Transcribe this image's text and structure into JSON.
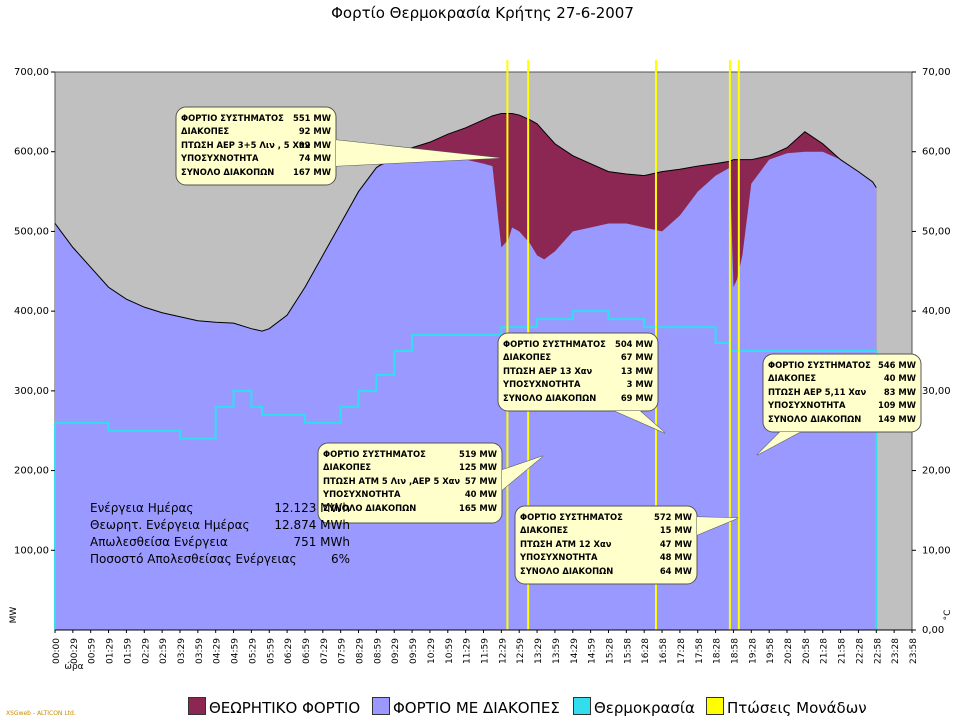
{
  "chart_data": {
    "type": "area",
    "title": "Φορτίο Θερμοκρασία Κρήτης 27-6-2007",
    "ylabel": "MW",
    "y2label": "°C",
    "xlabel": "ώρα",
    "ylim": [
      0,
      700
    ],
    "y2lim": [
      0,
      70
    ],
    "yticks": [
      "100,00",
      "200,00",
      "300,00",
      "400,00",
      "500,00",
      "600,00",
      "700,00"
    ],
    "y2ticks": [
      "0,00",
      "10,00",
      "20,00",
      "30,00",
      "40,00",
      "50,00",
      "60,00",
      "70,00"
    ],
    "xticks": [
      "00:00",
      "00:29",
      "00:59",
      "01:29",
      "01:59",
      "02:29",
      "02:59",
      "03:29",
      "03:59",
      "04:29",
      "04:59",
      "05:29",
      "05:59",
      "06:29",
      "06:59",
      "07:29",
      "07:59",
      "08:29",
      "08:59",
      "09:29",
      "09:59",
      "10:29",
      "10:59",
      "11:29",
      "11:59",
      "12:29",
      "12:59",
      "13:29",
      "13:59",
      "14:29",
      "14:59",
      "15:28",
      "15:58",
      "16:28",
      "16:58",
      "17:28",
      "17:58",
      "18:28",
      "18:58",
      "19:28",
      "19:58",
      "20:28",
      "20:58",
      "21:28",
      "21:58",
      "22:28",
      "22:58",
      "23:28",
      "23:58"
    ],
    "x_hours": [
      0,
      0.5,
      1,
      1.5,
      2,
      2.5,
      3,
      3.5,
      4,
      4.5,
      5,
      5.5,
      5.8,
      6,
      6.5,
      7,
      7.5,
      8,
      8.5,
      9,
      9.5,
      10,
      10.5,
      11,
      11.5,
      12,
      12.25,
      12.5,
      12.7,
      12.8,
      13,
      13.3,
      13.5,
      13.7,
      14,
      14.5,
      15,
      15.5,
      16,
      16.5,
      17,
      17.5,
      18,
      18.5,
      18.9,
      19.0,
      19.1,
      19.25,
      19.5,
      20,
      20.5,
      21,
      21.5,
      22,
      22.5,
      22.9,
      23.0
    ],
    "series": [
      {
        "name": "ΘΕΩΡΗΤΙΚΟ ΦΟΡΤΙΟ",
        "color": "#8b2752",
        "values": [
          510,
          480,
          455,
          430,
          415,
          405,
          398,
          393,
          388,
          386,
          385,
          378,
          375,
          378,
          395,
          430,
          470,
          510,
          550,
          580,
          595,
          605,
          612,
          622,
          630,
          640,
          645,
          648,
          648,
          648,
          646,
          640,
          635,
          625,
          610,
          595,
          585,
          575,
          572,
          570,
          575,
          578,
          582,
          585,
          588,
          590,
          590,
          590,
          590,
          595,
          605,
          625,
          610,
          590,
          575,
          562,
          555
        ]
      },
      {
        "name": "ΦΟΡΤΙΟ ΜΕ ΔΙΑΚΟΠΕΣ",
        "color": "#9999ff",
        "values": [
          510,
          480,
          455,
          430,
          415,
          405,
          398,
          393,
          388,
          386,
          385,
          378,
          375,
          378,
          395,
          430,
          470,
          510,
          550,
          580,
          590,
          592,
          592,
          592,
          590,
          585,
          582,
          480,
          490,
          505,
          500,
          485,
          470,
          465,
          475,
          500,
          505,
          510,
          510,
          505,
          500,
          520,
          550,
          570,
          580,
          430,
          440,
          470,
          560,
          590,
          598,
          600,
          600,
          590,
          575,
          562,
          555
        ]
      },
      {
        "name": "Θερμοκρασία",
        "color": "#33ddee",
        "axis": "right",
        "values": [
          26,
          26,
          26,
          25,
          25,
          25,
          25,
          24,
          24,
          28,
          30,
          28,
          27,
          27,
          27,
          26,
          26,
          28,
          30,
          32,
          35,
          37,
          37,
          37,
          37,
          37,
          37,
          38,
          38,
          38,
          38,
          38,
          39,
          39,
          39,
          40,
          40,
          39,
          39,
          38,
          38,
          38,
          38,
          36,
          35,
          35,
          35,
          35,
          35,
          35,
          35,
          35,
          35,
          35,
          35,
          35,
          35
        ]
      },
      {
        "name": "Πτώσεις Μονάδων",
        "color": "#ffff00",
        "type": "vline",
        "x_hours": [
          12.67,
          13.25,
          16.83,
          18.9,
          19.15
        ]
      }
    ],
    "callouts": [
      {
        "rows": [
          [
            "ΦΟΡΤΙΟ ΣΥΣΤΗΜΑΤΟΣ",
            "551 MW"
          ],
          [
            "ΔΙΑΚΟΠΕΣ",
            "92 MW"
          ],
          [
            "ΠΤΩΣΗ ΑΕΡ 3+5 Λιν , 5 Χαν",
            "92 MW"
          ],
          [
            "ΥΠΟΣΥΧΝΟΤΗΤΑ",
            "74 MW"
          ],
          [
            "ΣΥΝΟΛΟ ΔΙΑΚΟΠΩΝ",
            "167 MW"
          ]
        ]
      },
      {
        "rows": [
          [
            "ΦΟΡΤΙΟ ΣΥΣΤΗΜΑΤΟΣ",
            "504 MW"
          ],
          [
            "ΔΙΑΚΟΠΕΣ",
            "67 MW"
          ],
          [
            "ΠΤΩΣΗ ΑΕΡ 13 Χαν",
            "13 MW"
          ],
          [
            "ΥΠΟΣΥΧΝΟΤΗΤΑ",
            "3 MW"
          ],
          [
            "ΣΥΝΟΛΟ ΔΙΑΚΟΠΩΝ",
            "69 MW"
          ]
        ]
      },
      {
        "rows": [
          [
            "ΦΟΡΤΙΟ ΣΥΣΤΗΜΑΤΟΣ",
            "519 MW"
          ],
          [
            "ΔΙΑΚΟΠΕΣ",
            "125 MW"
          ],
          [
            "ΠΤΩΣΗ ΑΤΜ 5 Λιν ,ΑΕΡ 5 Χαν",
            "57 MW"
          ],
          [
            "ΥΠΟΣΥΧΝΟΤΗΤΑ",
            "40 MW"
          ],
          [
            "ΣΥΝΟΛΟ ΔΙΑΚΟΠΩΝ",
            "165 MW"
          ]
        ]
      },
      {
        "rows": [
          [
            "ΦΟΡΤΙΟ ΣΥΣΤΗΜΑΤΟΣ",
            "572 MW"
          ],
          [
            "ΔΙΑΚΟΠΕΣ",
            "15 MW"
          ],
          [
            "ΠΤΩΣΗ ΑΤΜ 12 Χαν",
            "47 MW"
          ],
          [
            "ΥΠΟΣΥΧΝΟΤΗΤΑ",
            "48 MW"
          ],
          [
            "ΣΥΝΟΛΟ ΔΙΑΚΟΠΩΝ",
            "64 MW"
          ]
        ]
      },
      {
        "rows": [
          [
            "ΦΟΡΤΙΟ ΣΥΣΤΗΜΑΤΟΣ",
            "546 MW"
          ],
          [
            "ΔΙΑΚΟΠΕΣ",
            "40 MW"
          ],
          [
            "ΠΤΩΣΗ ΑΕΡ 5,11 Χαν",
            "83 MW"
          ],
          [
            "ΥΠΟΣΥΧΝΟΤΗΤΑ",
            "109 MW"
          ],
          [
            "ΣΥΝΟΛΟ ΔΙΑΚΟΠΩΝ",
            "149 MW"
          ]
        ]
      }
    ],
    "stats": [
      {
        "label": "Ενέργεια Ημέρας",
        "value": "12.123 MWh"
      },
      {
        "label": "Θεωρητ. Ενέργεια Ημέρας",
        "value": "12.874 MWh"
      },
      {
        "label": "Απωλεσθείσα Ενέργεια",
        "value": "751 MWh"
      },
      {
        "label": "Ποσοστό Απολεσθείσας Ενέργειας",
        "value": "6%"
      }
    ],
    "legend_position": "bottom",
    "plot_background": "#c0c0c0"
  },
  "credit": "XSGweb - ALTICON Ltd."
}
